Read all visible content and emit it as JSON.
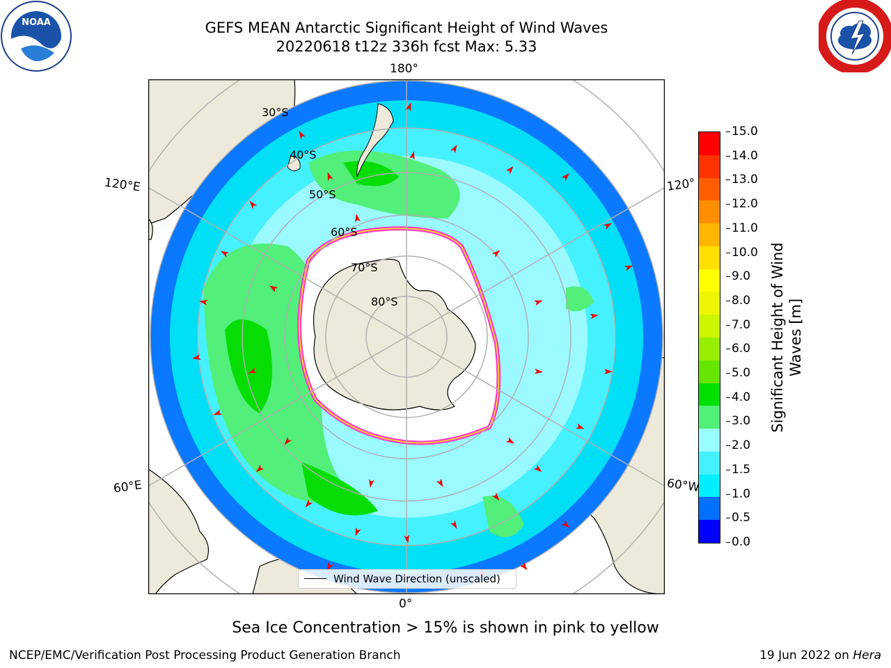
{
  "header": {
    "title_line1": "GEFS MEAN Antarctic Significant Height of Wind Waves",
    "title_line2": "20220618 t12z 336h fcst   Max: 5.33"
  },
  "logos": {
    "left": {
      "icon": "noaa-logo",
      "text": "NOAA"
    },
    "right": {
      "icon": "national-weather-service-logo"
    }
  },
  "map": {
    "projection": "south-polar-stereographic",
    "longitude_labels": {
      "top": "180°",
      "left_upper": "120°E",
      "right_upper": "120°",
      "left_lower": "60°E",
      "right_lower": "60°W",
      "bottom": "0°"
    },
    "latitude_labels": [
      "30°S",
      "40°S",
      "50°S",
      "60°S",
      "70°S",
      "80°S"
    ],
    "legend_label": "Wind Wave Direction (unscaled)",
    "colors": {
      "land": "#eeeadb",
      "ice_edge": "#ff33cc",
      "arrows": "#ee0000",
      "grid": "#b0b0b0"
    }
  },
  "colorbar": {
    "label": "Significant Height of Wind Waves [m]",
    "label_line1": "Significant Height of Wind",
    "label_line2": "Waves [m]",
    "tick_labels": [
      "15.0",
      "14.0",
      "13.0",
      "12.0",
      "11.0",
      "10.0",
      "9.0",
      "8.0",
      "7.0",
      "6.0",
      "5.0",
      "4.0",
      "3.0",
      "2.0",
      "1.5",
      "1.0",
      "0.5",
      "0.0"
    ],
    "colors_bottom_to_top": [
      "#0000ff",
      "#0070ff",
      "#00eeff",
      "#44f2ff",
      "#99fcff",
      "#50f079",
      "#00e000",
      "#66e600",
      "#99ee00",
      "#ccf500",
      "#eef500",
      "#ffff00",
      "#ffde00",
      "#ffb600",
      "#ff8f00",
      "#ff5d00",
      "#ff3300",
      "#ff0000"
    ]
  },
  "caption": "Sea Ice Concentration > 15% is shown in pink to yellow",
  "footer": {
    "left": "NCEP/EMC/Verification Post Processing Product Generation Branch",
    "date": "19 Jun 2022 on ",
    "machine": "Hera"
  }
}
